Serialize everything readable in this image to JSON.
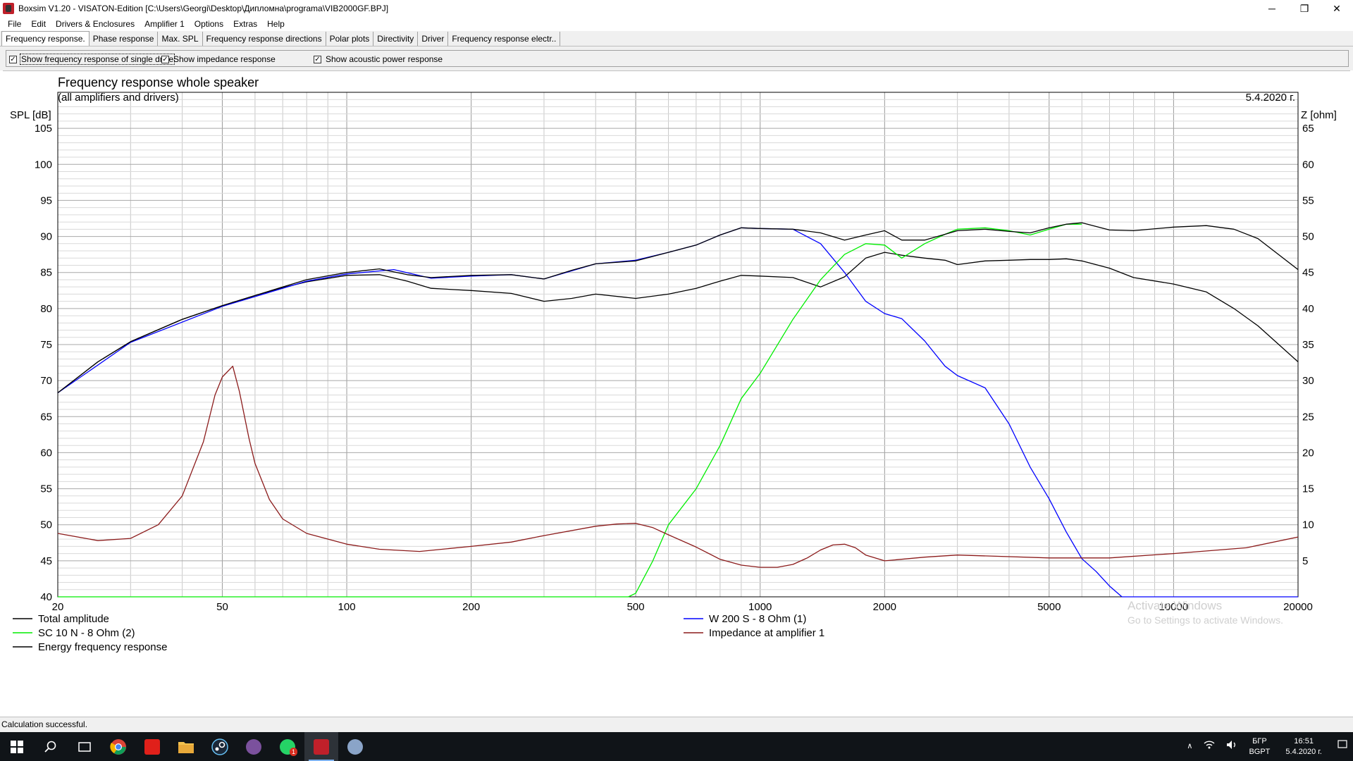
{
  "window": {
    "title": "Boxsim V1.20 - VISATON-Edition [C:\\Users\\Georgi\\Desktop\\Дипломна\\programa\\VIB2000GF.BPJ]",
    "minimize": "─",
    "restore": "❐",
    "close": "✕"
  },
  "menu": [
    "File",
    "Edit",
    "Drivers & Enclosures",
    "Amplifier 1",
    "Options",
    "Extras",
    "Help"
  ],
  "tabs": [
    {
      "label": "Frequency response.",
      "active": true
    },
    {
      "label": "Phase response",
      "active": false
    },
    {
      "label": "Max. SPL",
      "active": false
    },
    {
      "label": "Frequency response directions",
      "active": false
    },
    {
      "label": "Polar plots",
      "active": false
    },
    {
      "label": "Directivity",
      "active": false
    },
    {
      "label": "Driver",
      "active": false
    },
    {
      "label": "Frequency response electr..",
      "active": false
    }
  ],
  "options": {
    "single_driver": {
      "label": "Show frequency response of single drive",
      "checked": true
    },
    "impedance": {
      "label": "Show impedance response",
      "checked": true
    },
    "acoustic_power": {
      "label": "Show acoustic power response",
      "checked": true
    }
  },
  "status": "Calculation successful.",
  "watermark": {
    "line1": "Activate Windows",
    "line2": "Go to Settings to activate Windows."
  },
  "taskbar": {
    "icons": [
      "windows-start-icon",
      "search-icon",
      "task-view-icon",
      "chrome-icon",
      "acrobat-icon",
      "file-explorer-icon",
      "steam-icon",
      "viber-icon",
      "whatsapp-icon",
      "boxsim-icon",
      "settings-app-icon"
    ],
    "whatsapp_badge": "1",
    "lang_top": "БГР",
    "lang_bottom": "BGPT",
    "time": "16:51",
    "date": "5.4.2020 г."
  },
  "chart_data": {
    "type": "line",
    "title": "Frequency response whole speaker",
    "subtitle": "(all amplifiers and drivers)",
    "date": "5.4.2020 г.",
    "ylabel": "SPL [dB]",
    "y2label": "Z [ohm]",
    "xscale": "log",
    "xlim": [
      20,
      20000
    ],
    "ylim": [
      40,
      110
    ],
    "y2lim": [
      0,
      70
    ],
    "xticks": [
      20,
      50,
      100,
      200,
      500,
      1000,
      2000,
      5000,
      10000,
      20000
    ],
    "yticks": [
      40,
      45,
      50,
      55,
      60,
      65,
      70,
      75,
      80,
      85,
      90,
      95,
      100,
      105
    ],
    "y2ticks": [
      5,
      10,
      15,
      20,
      25,
      30,
      35,
      40,
      45,
      50,
      55,
      60,
      65
    ],
    "grid": true,
    "legend_position": "bottom",
    "series": [
      {
        "name": "Total amplitude",
        "color": "#000000",
        "axis": "left",
        "x": [
          20,
          25,
          30,
          40,
          50,
          60,
          70,
          80,
          100,
          120,
          140,
          160,
          200,
          250,
          300,
          350,
          400,
          500,
          600,
          700,
          800,
          900,
          1000,
          1200,
          1400,
          1600,
          1800,
          2000,
          2200,
          2500,
          2800,
          3000,
          3500,
          4000,
          4500,
          5000,
          5500,
          6000,
          7000,
          8000,
          10000,
          12000,
          14000,
          16000,
          20000
        ],
        "values": [
          68.3,
          72.6,
          75.4,
          78.5,
          80.4,
          81.8,
          82.9,
          83.7,
          84.6,
          84.7,
          83.8,
          82.8,
          82.5,
          82.1,
          81.0,
          81.4,
          82.0,
          81.4,
          82.0,
          82.8,
          83.8,
          84.6,
          84.5,
          84.3,
          83.0,
          84.4,
          87.0,
          87.8,
          87.4,
          87.0,
          86.7,
          86.1,
          86.6,
          86.7,
          86.8,
          86.8,
          86.9,
          86.6,
          85.6,
          84.3,
          83.4,
          82.3,
          80.0,
          77.6,
          72.6
        ]
      },
      {
        "name": "W 200 S - 8 Ohm (1)",
        "color": "#0000ff",
        "axis": "left",
        "x": [
          20,
          30,
          50,
          80,
          100,
          130,
          160,
          200,
          250,
          300,
          400,
          500,
          600,
          700,
          800,
          900,
          1000,
          1200,
          1400,
          1600,
          1800,
          2000,
          2200,
          2500,
          2800,
          3000,
          3500,
          4000,
          4500,
          5000,
          5500,
          6000,
          6500,
          7000,
          7500,
          10000,
          20000
        ],
        "values": [
          68.3,
          75.3,
          80.3,
          83.8,
          84.8,
          85.4,
          84.2,
          84.5,
          84.7,
          84.1,
          86.2,
          86.7,
          87.8,
          88.8,
          90.2,
          91.2,
          91.1,
          91.0,
          89.0,
          85.0,
          81.0,
          79.3,
          78.6,
          75.5,
          72.0,
          70.7,
          69.0,
          64.0,
          58.0,
          53.6,
          49.0,
          45.3,
          43.5,
          41.5,
          40.0,
          40.0,
          40.0
        ]
      },
      {
        "name": "SC 10 N - 8 Ohm (2)",
        "color": "#00ee00",
        "axis": "left",
        "x": [
          20,
          400,
          480,
          500,
          550,
          600,
          700,
          800,
          900,
          1000,
          1200,
          1400,
          1600,
          1800,
          2000,
          2200,
          2500,
          2800,
          3000,
          3500,
          4000,
          4500,
          5000,
          5500,
          6000
        ],
        "values": [
          40.0,
          40.0,
          40.0,
          40.5,
          45.0,
          50.0,
          55.0,
          61.0,
          67.5,
          71.0,
          78.5,
          84.0,
          87.5,
          89.0,
          88.8,
          87.0,
          89.0,
          90.3,
          91.0,
          91.2,
          90.8,
          90.2,
          91.0,
          91.7,
          91.7
        ]
      },
      {
        "name": "Impedance at amplifier 1",
        "color": "#8b1a1a",
        "axis": "right",
        "x": [
          20,
          25,
          30,
          35,
          40,
          45,
          48,
          50,
          53,
          55,
          58,
          60,
          65,
          70,
          80,
          100,
          120,
          150,
          200,
          250,
          300,
          400,
          450,
          500,
          550,
          600,
          700,
          800,
          900,
          1000,
          1100,
          1200,
          1300,
          1400,
          1500,
          1600,
          1700,
          1800,
          2000,
          2500,
          3000,
          5000,
          7000,
          10000,
          15000,
          20000
        ],
        "values": [
          8.8,
          7.8,
          8.1,
          10.0,
          14.0,
          21.5,
          28.0,
          30.5,
          32.0,
          28.5,
          22.0,
          18.5,
          13.5,
          10.8,
          8.8,
          7.3,
          6.6,
          6.3,
          7.0,
          7.6,
          8.5,
          9.8,
          10.1,
          10.2,
          9.6,
          8.6,
          6.9,
          5.2,
          4.4,
          4.1,
          4.1,
          4.5,
          5.4,
          6.5,
          7.2,
          7.3,
          6.8,
          5.8,
          5.0,
          5.5,
          5.8,
          5.4,
          5.4,
          6.0,
          6.8,
          8.3
        ]
      },
      {
        "name": "Energy frequency response",
        "color": "#000000",
        "axis": "left",
        "x": [
          20,
          25,
          30,
          40,
          50,
          60,
          70,
          80,
          100,
          120,
          140,
          160,
          200,
          250,
          300,
          350,
          400,
          500,
          600,
          700,
          800,
          900,
          1000,
          1200,
          1400,
          1600,
          1800,
          2000,
          2200,
          2500,
          2800,
          3000,
          3500,
          4000,
          4500,
          5000,
          5500,
          6000,
          7000,
          8000,
          10000,
          12000,
          14000,
          16000,
          20000
        ],
        "values": [
          68.3,
          72.6,
          75.4,
          78.5,
          80.4,
          81.8,
          83.0,
          84.0,
          85.0,
          85.5,
          84.7,
          84.3,
          84.6,
          84.7,
          84.1,
          85.3,
          86.2,
          86.6,
          87.8,
          88.8,
          90.2,
          91.2,
          91.1,
          91.0,
          90.5,
          89.5,
          90.2,
          90.8,
          89.5,
          89.5,
          90.3,
          90.8,
          91.0,
          90.7,
          90.5,
          91.2,
          91.7,
          91.9,
          90.9,
          90.8,
          91.3,
          91.5,
          91.0,
          89.7,
          85.4
        ]
      }
    ]
  }
}
